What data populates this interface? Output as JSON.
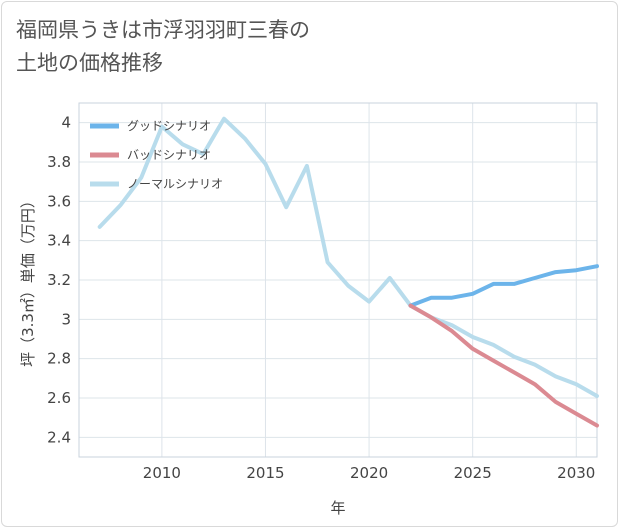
{
  "title_lines": [
    "福岡県うきは市浮羽羽町三春の",
    "土地の価格推移"
  ],
  "chart_data": {
    "type": "line",
    "title": "福岡県うきは市浮羽羽町三春の土地の価格推移",
    "xlabel": "年",
    "ylabel": "坪（3.3㎡）単価（万円）",
    "xlim": [
      2006,
      2031
    ],
    "ylim": [
      2.3,
      4.1
    ],
    "xticks": [
      2010,
      2015,
      2020,
      2025,
      2030
    ],
    "yticks": [
      2.4,
      2.6,
      2.8,
      3,
      3.2,
      3.4,
      3.6,
      3.8,
      4
    ],
    "grid": true,
    "legend_position": "top-left",
    "series": [
      {
        "name": "グッドシナリオ",
        "color": "#6cb4ea",
        "x": [
          2022,
          2023,
          2024,
          2025,
          2026,
          2027,
          2028,
          2029,
          2030,
          2031
        ],
        "values": [
          3.07,
          3.11,
          3.11,
          3.13,
          3.18,
          3.18,
          3.21,
          3.24,
          3.25,
          3.27
        ]
      },
      {
        "name": "バッドシナリオ",
        "color": "#db8a92",
        "x": [
          2022,
          2023,
          2024,
          2025,
          2026,
          2027,
          2028,
          2029,
          2030,
          2031
        ],
        "values": [
          3.07,
          3.01,
          2.94,
          2.85,
          2.79,
          2.73,
          2.67,
          2.58,
          2.52,
          2.46
        ]
      },
      {
        "name": "ノーマルシナリオ",
        "color": "#b8dcec",
        "x": [
          2007,
          2008,
          2009,
          2010,
          2011,
          2012,
          2013,
          2014,
          2015,
          2016,
          2017,
          2018,
          2019,
          2020,
          2021,
          2022,
          2023,
          2024,
          2025,
          2026,
          2027,
          2028,
          2029,
          2030,
          2031
        ],
        "values": [
          3.47,
          3.58,
          3.72,
          3.98,
          3.89,
          3.84,
          4.02,
          3.92,
          3.79,
          3.57,
          3.78,
          3.29,
          3.17,
          3.09,
          3.21,
          3.07,
          3.01,
          2.97,
          2.91,
          2.87,
          2.81,
          2.77,
          2.71,
          2.67,
          2.61
        ]
      }
    ]
  }
}
